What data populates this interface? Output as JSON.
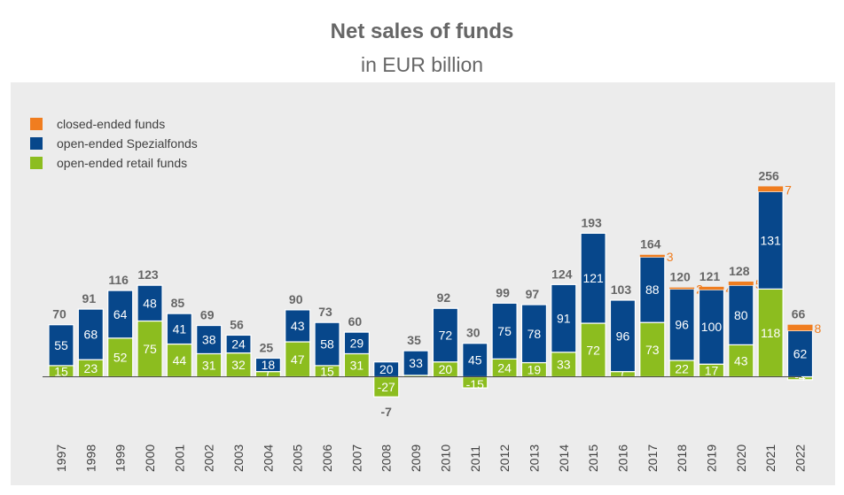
{
  "chart_data": {
    "type": "bar",
    "title": "Net sales of funds",
    "subtitle": "in EUR billion",
    "stacked": true,
    "categories": [
      "1997",
      "1998",
      "1999",
      "2000",
      "2001",
      "2002",
      "2003",
      "2004",
      "2005",
      "2006",
      "2007",
      "2008",
      "2009",
      "2010",
      "2011",
      "2012",
      "2013",
      "2014",
      "2015",
      "2016",
      "2017",
      "2018",
      "2019",
      "2020",
      "2021",
      "2022"
    ],
    "series": [
      {
        "name": "open-ended retail funds",
        "color": "#8cbd1f",
        "values": [
          15,
          23,
          52,
          75,
          44,
          31,
          32,
          7,
          47,
          15,
          31,
          -27,
          2,
          20,
          -15,
          24,
          19,
          33,
          72,
          7,
          73,
          22,
          17,
          43,
          118,
          -4
        ]
      },
      {
        "name": "open-ended Spezialfonds",
        "color": "#07478b",
        "values": [
          55,
          68,
          64,
          48,
          41,
          38,
          24,
          18,
          43,
          58,
          29,
          20,
          33,
          72,
          45,
          75,
          78,
          91,
          121,
          96,
          88,
          96,
          100,
          80,
          131,
          62
        ]
      },
      {
        "name": "closed-ended funds",
        "color": "#f07d1f",
        "values": [
          0,
          0,
          0,
          0,
          0,
          0,
          0,
          0,
          0,
          0,
          0,
          0,
          0,
          0,
          0,
          0,
          0,
          0,
          0,
          0,
          3,
          2,
          4,
          5,
          7,
          8
        ]
      }
    ],
    "totals": [
      70,
      91,
      116,
      123,
      85,
      69,
      56,
      25,
      90,
      73,
      60,
      -7,
      35,
      92,
      30,
      99,
      97,
      124,
      193,
      103,
      164,
      120,
      121,
      128,
      256,
      66
    ],
    "ylim": [
      -40,
      270
    ],
    "grid": false,
    "legend_position": "top-left"
  }
}
